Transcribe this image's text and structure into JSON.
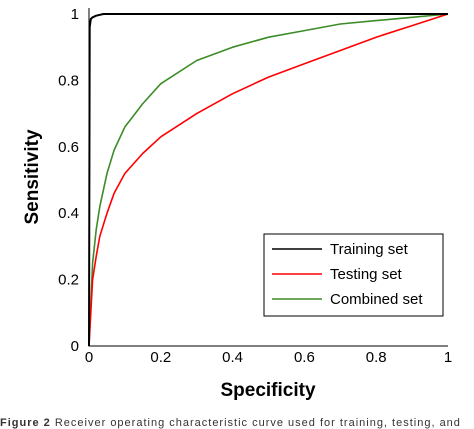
{
  "chart_data": {
    "type": "line",
    "xlabel": "Specificity",
    "ylabel": "Sensitivity",
    "xlim": [
      0,
      1
    ],
    "ylim": [
      0,
      1
    ],
    "xticks": [
      "0",
      "0.2",
      "0.4",
      "0.6",
      "0.8",
      "1"
    ],
    "yticks": [
      "0",
      "0.2",
      "0.4",
      "0.6",
      "0.8",
      "1"
    ],
    "grid": false,
    "legend_position": "bottom-right",
    "series": [
      {
        "name": "Training set",
        "color": "#000000",
        "x": [
          0,
          0.002,
          0.005,
          0.01,
          0.02,
          0.04,
          0.08,
          0.15,
          0.3,
          0.5,
          0.7,
          0.9,
          1
        ],
        "y": [
          0,
          0.96,
          0.985,
          0.99,
          0.995,
          1,
          1,
          1,
          1,
          1,
          1,
          1,
          1
        ]
      },
      {
        "name": "Testing set",
        "color": "#ff0000",
        "x": [
          0,
          0.01,
          0.02,
          0.03,
          0.05,
          0.07,
          0.1,
          0.15,
          0.2,
          0.3,
          0.4,
          0.5,
          0.6,
          0.7,
          0.8,
          0.9,
          1
        ],
        "y": [
          0,
          0.2,
          0.27,
          0.33,
          0.4,
          0.46,
          0.52,
          0.58,
          0.63,
          0.7,
          0.76,
          0.81,
          0.85,
          0.89,
          0.93,
          0.965,
          1
        ]
      },
      {
        "name": "Combined set",
        "color": "#3c8c28",
        "x": [
          0,
          0.01,
          0.02,
          0.03,
          0.05,
          0.07,
          0.1,
          0.15,
          0.2,
          0.3,
          0.4,
          0.5,
          0.6,
          0.7,
          0.8,
          0.9,
          1
        ],
        "y": [
          0,
          0.25,
          0.35,
          0.42,
          0.52,
          0.59,
          0.66,
          0.73,
          0.79,
          0.86,
          0.9,
          0.93,
          0.95,
          0.97,
          0.98,
          0.99,
          1
        ]
      }
    ]
  },
  "caption": {
    "label": "Figure 2",
    "text": "Receiver operating characteristic curve used for training, testing, and"
  }
}
